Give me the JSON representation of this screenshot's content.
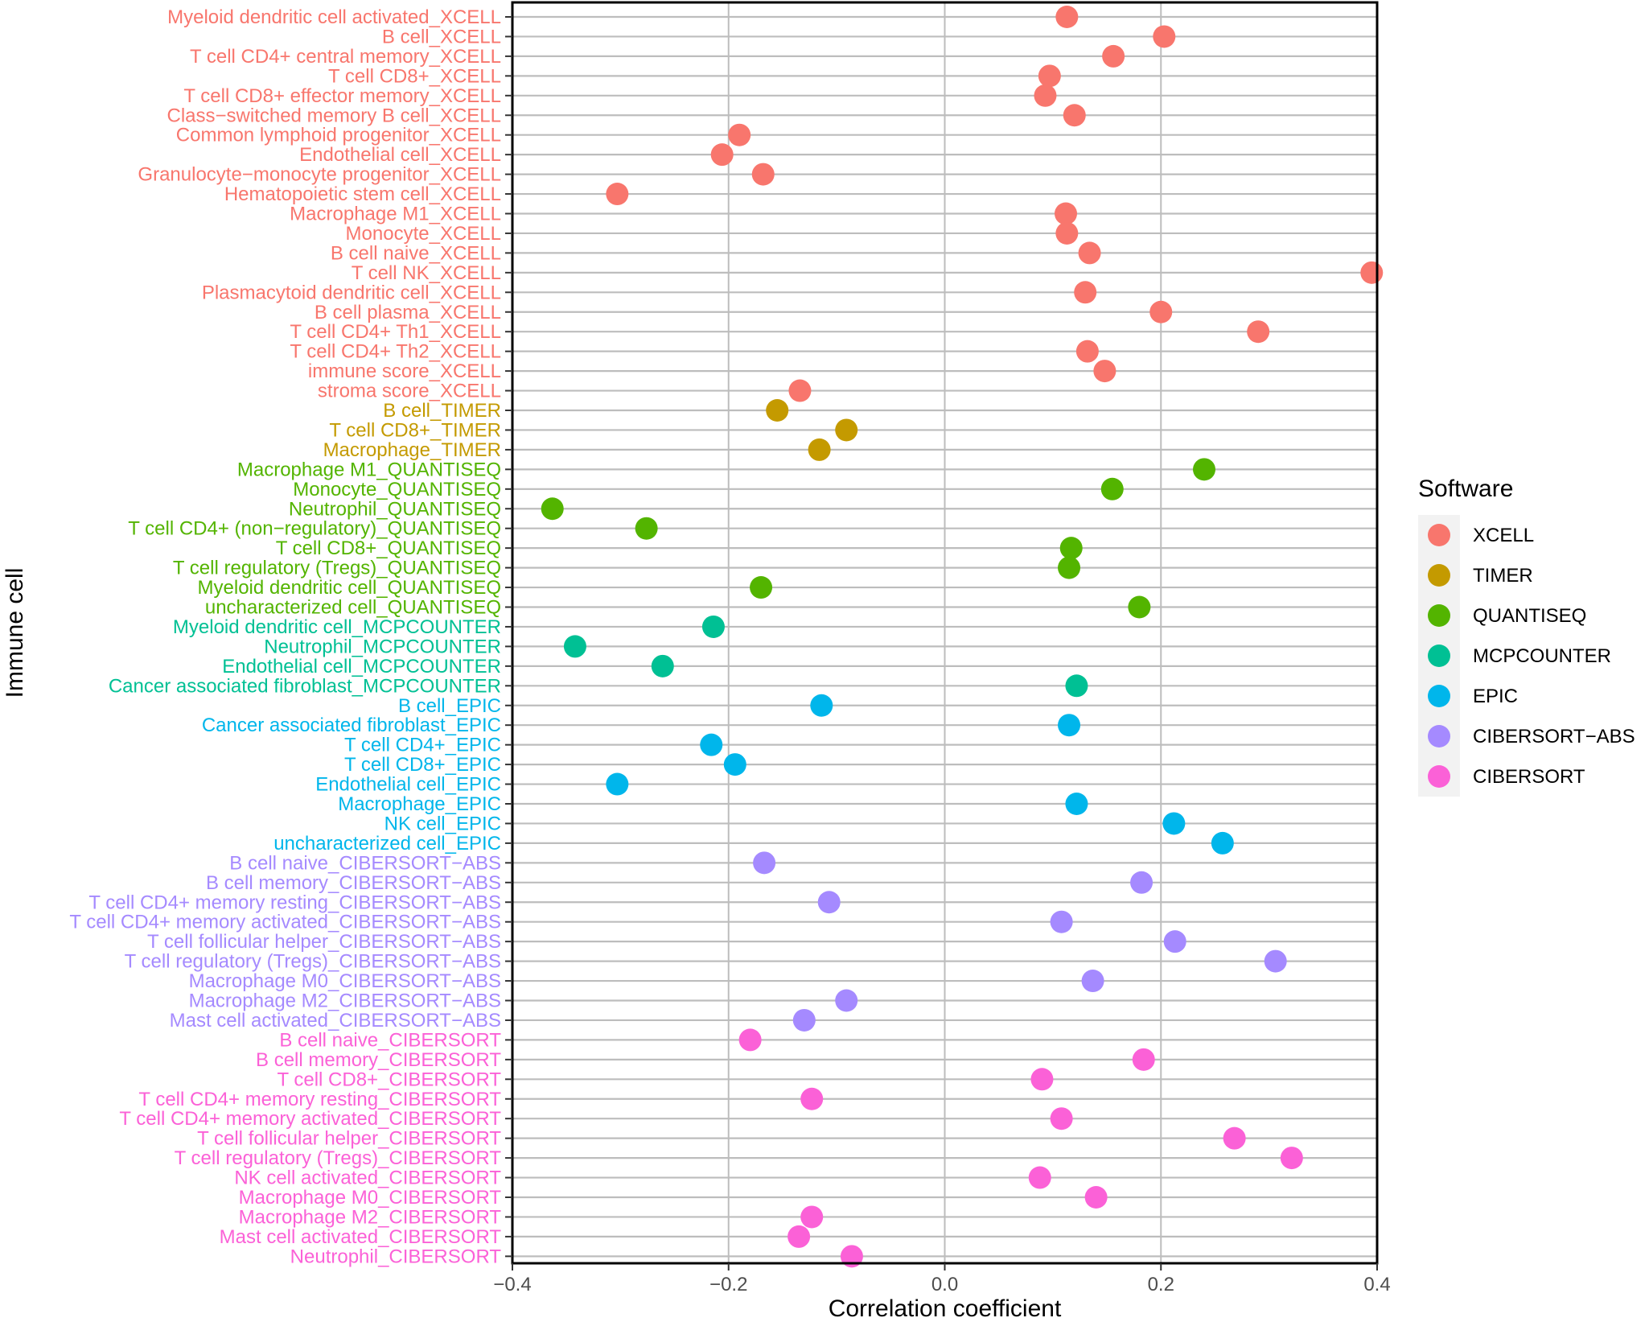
{
  "chart_data": {
    "type": "scatter",
    "xlabel": "Correlation coefficient",
    "ylabel": "Immune cell",
    "xlim": [
      -0.4,
      0.4
    ],
    "x_ticks": [
      "-0.4",
      "-0.2",
      "0.0",
      "0.2",
      "0.4"
    ],
    "grid": true,
    "legend_position": "right",
    "legend_title": "Software",
    "software": [
      {
        "name": "XCELL",
        "color": "#F8766D"
      },
      {
        "name": "TIMER",
        "color": "#C49A00"
      },
      {
        "name": "QUANTISEQ",
        "color": "#53B400"
      },
      {
        "name": "MCPCOUNTER",
        "color": "#00C094"
      },
      {
        "name": "EPIC",
        "color": "#00B6EB"
      },
      {
        "name": "CIBERSORT-ABS",
        "color": "#A58AFF"
      },
      {
        "name": "CIBERSORT",
        "color": "#FB61D7"
      }
    ],
    "points": [
      {
        "cell": "Myeloid dendritic cell activated_XCELL",
        "software": "XCELL",
        "x": 0.113
      },
      {
        "cell": "B cell_XCELL",
        "software": "XCELL",
        "x": 0.203
      },
      {
        "cell": "T cell CD4+ central memory_XCELL",
        "software": "XCELL",
        "x": 0.156
      },
      {
        "cell": "T cell CD8+_XCELL",
        "software": "XCELL",
        "x": 0.097
      },
      {
        "cell": "T cell CD8+ effector memory_XCELL",
        "software": "XCELL",
        "x": 0.093
      },
      {
        "cell": "Class−switched memory B cell_XCELL",
        "software": "XCELL",
        "x": 0.12
      },
      {
        "cell": "Common lymphoid progenitor_XCELL",
        "software": "XCELL",
        "x": -0.19
      },
      {
        "cell": "Endothelial cell_XCELL",
        "software": "XCELL",
        "x": -0.206
      },
      {
        "cell": "Granulocyte−monocyte progenitor_XCELL",
        "software": "XCELL",
        "x": -0.168
      },
      {
        "cell": "Hematopoietic stem cell_XCELL",
        "software": "XCELL",
        "x": -0.303
      },
      {
        "cell": "Macrophage M1_XCELL",
        "software": "XCELL",
        "x": 0.112
      },
      {
        "cell": "Monocyte_XCELL",
        "software": "XCELL",
        "x": 0.113
      },
      {
        "cell": "B cell naive_XCELL",
        "software": "XCELL",
        "x": 0.134
      },
      {
        "cell": "T cell NK_XCELL",
        "software": "XCELL",
        "x": 0.395
      },
      {
        "cell": "Plasmacytoid dendritic cell_XCELL",
        "software": "XCELL",
        "x": 0.13
      },
      {
        "cell": "B cell plasma_XCELL",
        "software": "XCELL",
        "x": 0.2
      },
      {
        "cell": "T cell CD4+ Th1_XCELL",
        "software": "XCELL",
        "x": 0.29
      },
      {
        "cell": "T cell CD4+ Th2_XCELL",
        "software": "XCELL",
        "x": 0.132
      },
      {
        "cell": "immune score_XCELL",
        "software": "XCELL",
        "x": 0.148
      },
      {
        "cell": "stroma score_XCELL",
        "software": "XCELL",
        "x": -0.134
      },
      {
        "cell": "B cell_TIMER",
        "software": "TIMER",
        "x": -0.155
      },
      {
        "cell": "T cell CD8+_TIMER",
        "software": "TIMER",
        "x": -0.091
      },
      {
        "cell": "Macrophage_TIMER",
        "software": "TIMER",
        "x": -0.116
      },
      {
        "cell": "Macrophage M1_QUANTISEQ",
        "software": "QUANTISEQ",
        "x": 0.24
      },
      {
        "cell": "Monocyte_QUANTISEQ",
        "software": "QUANTISEQ",
        "x": 0.155
      },
      {
        "cell": "Neutrophil_QUANTISEQ",
        "software": "QUANTISEQ",
        "x": -0.363
      },
      {
        "cell": "T cell CD4+ (non−regulatory)_QUANTISEQ",
        "software": "QUANTISEQ",
        "x": -0.276
      },
      {
        "cell": "T cell CD8+_QUANTISEQ",
        "software": "QUANTISEQ",
        "x": 0.117
      },
      {
        "cell": "T cell regulatory (Tregs)_QUANTISEQ",
        "software": "QUANTISEQ",
        "x": 0.115
      },
      {
        "cell": "Myeloid dendritic cell_QUANTISEQ",
        "software": "QUANTISEQ",
        "x": -0.17
      },
      {
        "cell": "uncharacterized cell_QUANTISEQ",
        "software": "QUANTISEQ",
        "x": 0.18
      },
      {
        "cell": "Myeloid dendritic cell_MCPCOUNTER",
        "software": "MCPCOUNTER",
        "x": -0.214
      },
      {
        "cell": "Neutrophil_MCPCOUNTER",
        "software": "MCPCOUNTER",
        "x": -0.342
      },
      {
        "cell": "Endothelial cell_MCPCOUNTER",
        "software": "MCPCOUNTER",
        "x": -0.261
      },
      {
        "cell": "Cancer associated fibroblast_MCPCOUNTER",
        "software": "MCPCOUNTER",
        "x": 0.122
      },
      {
        "cell": "B cell_EPIC",
        "software": "EPIC",
        "x": -0.114
      },
      {
        "cell": "Cancer associated fibroblast_EPIC",
        "software": "EPIC",
        "x": 0.115
      },
      {
        "cell": "T cell CD4+_EPIC",
        "software": "EPIC",
        "x": -0.216
      },
      {
        "cell": "T cell CD8+_EPIC",
        "software": "EPIC",
        "x": -0.194
      },
      {
        "cell": "Endothelial cell_EPIC",
        "software": "EPIC",
        "x": -0.303
      },
      {
        "cell": "Macrophage_EPIC",
        "software": "EPIC",
        "x": 0.122
      },
      {
        "cell": "NK cell_EPIC",
        "software": "EPIC",
        "x": 0.212
      },
      {
        "cell": "uncharacterized cell_EPIC",
        "software": "EPIC",
        "x": 0.257
      },
      {
        "cell": "B cell naive_CIBERSORT−ABS",
        "software": "CIBERSORT-ABS",
        "x": -0.167
      },
      {
        "cell": "B cell memory_CIBERSORT−ABS",
        "software": "CIBERSORT-ABS",
        "x": 0.182
      },
      {
        "cell": "T cell CD4+ memory resting_CIBERSORT−ABS",
        "software": "CIBERSORT-ABS",
        "x": -0.107
      },
      {
        "cell": "T cell CD4+ memory activated_CIBERSORT−ABS",
        "software": "CIBERSORT-ABS",
        "x": 0.108
      },
      {
        "cell": "T cell follicular helper_CIBERSORT−ABS",
        "software": "CIBERSORT-ABS",
        "x": 0.213
      },
      {
        "cell": "T cell regulatory (Tregs)_CIBERSORT−ABS",
        "software": "CIBERSORT-ABS",
        "x": 0.306
      },
      {
        "cell": "Macrophage M0_CIBERSORT−ABS",
        "software": "CIBERSORT-ABS",
        "x": 0.137
      },
      {
        "cell": "Macrophage M2_CIBERSORT−ABS",
        "software": "CIBERSORT-ABS",
        "x": -0.091
      },
      {
        "cell": "Mast cell activated_CIBERSORT−ABS",
        "software": "CIBERSORT-ABS",
        "x": -0.13
      },
      {
        "cell": "B cell naive_CIBERSORT",
        "software": "CIBERSORT",
        "x": -0.18
      },
      {
        "cell": "B cell memory_CIBERSORT",
        "software": "CIBERSORT",
        "x": 0.184
      },
      {
        "cell": "T cell CD8+_CIBERSORT",
        "software": "CIBERSORT",
        "x": 0.09
      },
      {
        "cell": "T cell CD4+ memory resting_CIBERSORT",
        "software": "CIBERSORT",
        "x": -0.123
      },
      {
        "cell": "T cell CD4+ memory activated_CIBERSORT",
        "software": "CIBERSORT",
        "x": 0.108
      },
      {
        "cell": "T cell follicular helper_CIBERSORT",
        "software": "CIBERSORT",
        "x": 0.268
      },
      {
        "cell": "T cell regulatory (Tregs)_CIBERSORT",
        "software": "CIBERSORT",
        "x": 0.321
      },
      {
        "cell": "NK cell activated_CIBERSORT",
        "software": "CIBERSORT",
        "x": 0.088
      },
      {
        "cell": "Macrophage M0_CIBERSORT",
        "software": "CIBERSORT",
        "x": 0.14
      },
      {
        "cell": "Macrophage M2_CIBERSORT",
        "software": "CIBERSORT",
        "x": -0.123
      },
      {
        "cell": "Mast cell activated_CIBERSORT",
        "software": "CIBERSORT",
        "x": -0.135
      },
      {
        "cell": "Neutrophil_CIBERSORT",
        "software": "CIBERSORT",
        "x": -0.086
      }
    ]
  }
}
